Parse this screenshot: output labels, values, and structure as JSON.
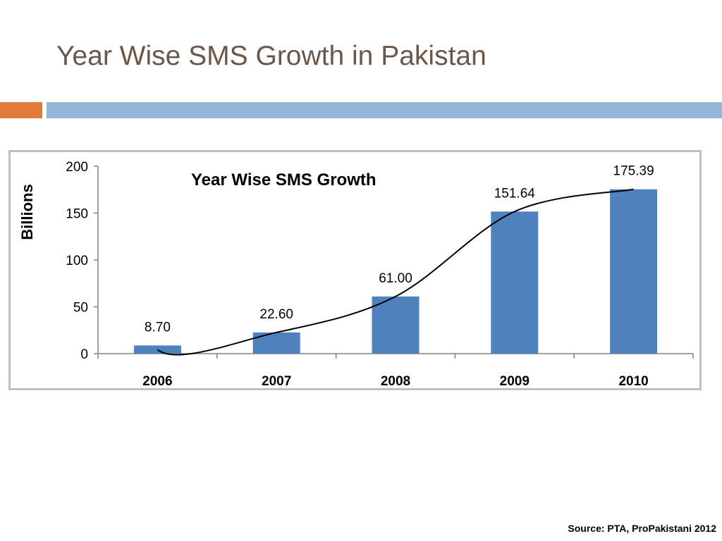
{
  "slide": {
    "title": "Year Wise SMS Growth in Pakistan",
    "source": "Source: PTA, ProPakistani 2012",
    "accent_color": "#e07b3a",
    "rule_color": "#93b6d6",
    "title_color": "#6b574a"
  },
  "chart_data": {
    "type": "bar",
    "title": "Year Wise SMS Growth",
    "ylabel": "Billions",
    "xlabel": "",
    "categories": [
      "2006",
      "2007",
      "2008",
      "2009",
      "2010"
    ],
    "values": [
      8.7,
      22.6,
      61.0,
      151.64,
      175.39
    ],
    "data_labels": [
      "8.70",
      "22.60",
      "61.00",
      "151.64",
      "175.39"
    ],
    "yticks": [
      "0",
      "50",
      "100",
      "150",
      "200"
    ],
    "ylim": [
      0,
      200
    ],
    "bar_color": "#4f81bd",
    "trend_line": true,
    "trend_color": "#000000",
    "grid": false,
    "legend": "none"
  }
}
